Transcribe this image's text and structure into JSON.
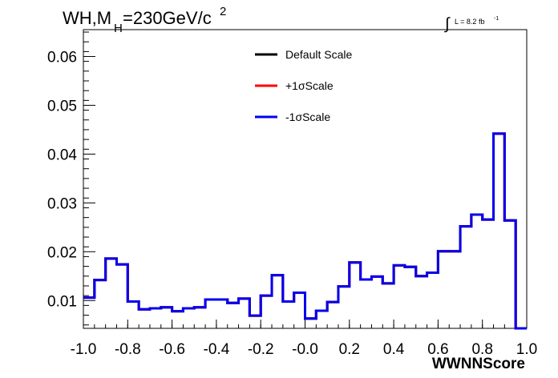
{
  "chart_data": {
    "type": "line",
    "title_main": "WH,M",
    "title_sub": "H",
    "title_rest": "=230GeV/c",
    "title_sup": "2",
    "lumi_integral": "∫",
    "lumi_label": "L = 8.2 fb",
    "lumi_sup": "-1",
    "xlabel": "WWNNScore",
    "ylabel": "",
    "xlim": [
      -1.0,
      1.0
    ],
    "ylim": [
      0.0043,
      0.0655
    ],
    "xticks": [
      "-1.0",
      "-0.8",
      "-0.6",
      "-0.4",
      "-0.2",
      "-0.0",
      "0.2",
      "0.4",
      "0.6",
      "0.8",
      "1.0"
    ],
    "xtick_values": [
      -1.0,
      -0.8,
      -0.6,
      -0.4,
      -0.2,
      0.0,
      0.2,
      0.4,
      0.6,
      0.8,
      1.0
    ],
    "yticks": [
      "0.01",
      "0.02",
      "0.03",
      "0.04",
      "0.05",
      "0.06"
    ],
    "ytick_values": [
      0.01,
      0.02,
      0.03,
      0.04,
      0.05,
      0.06
    ],
    "bin_edges": [
      -1.0,
      -0.95,
      -0.9,
      -0.85,
      -0.8,
      -0.75,
      -0.7,
      -0.65,
      -0.6,
      -0.55,
      -0.5,
      -0.45,
      -0.4,
      -0.35,
      -0.3,
      -0.25,
      -0.2,
      -0.15,
      -0.1,
      -0.05,
      0.0,
      0.05,
      0.1,
      0.15,
      0.2,
      0.25,
      0.3,
      0.35,
      0.4,
      0.45,
      0.5,
      0.55,
      0.6,
      0.65,
      0.7,
      0.75,
      0.8,
      0.85,
      0.9,
      0.95,
      1.0
    ],
    "legend_position": "top-center",
    "series": [
      {
        "name": "Default Scale",
        "color": "#000000",
        "values": [
          0.0106,
          0.0142,
          0.0186,
          0.0174,
          0.0098,
          0.0082,
          0.0084,
          0.0086,
          0.0078,
          0.0084,
          0.0086,
          0.0102,
          0.0102,
          0.0095,
          0.0104,
          0.0069,
          0.011,
          0.0152,
          0.0098,
          0.0116,
          0.0063,
          0.0079,
          0.0097,
          0.0129,
          0.0178,
          0.0143,
          0.0149,
          0.0135,
          0.0172,
          0.0169,
          0.015,
          0.0157,
          0.0201,
          0.0201,
          0.0252,
          0.0276,
          0.0266,
          0.0442,
          0.0264,
          0.0043
        ]
      },
      {
        "name": "+1σScale",
        "color": "#ff0000",
        "values": [
          0.0106,
          0.0142,
          0.0186,
          0.0174,
          0.0098,
          0.0082,
          0.0084,
          0.0086,
          0.0078,
          0.0084,
          0.0086,
          0.0102,
          0.0102,
          0.0095,
          0.0104,
          0.0069,
          0.011,
          0.0152,
          0.0098,
          0.0116,
          0.0063,
          0.0079,
          0.0097,
          0.0129,
          0.0178,
          0.0143,
          0.0149,
          0.0135,
          0.0172,
          0.0169,
          0.015,
          0.0157,
          0.0201,
          0.0201,
          0.0252,
          0.0276,
          0.0266,
          0.0442,
          0.0264,
          0.0043
        ]
      },
      {
        "name": "-1σScale",
        "color": "#0000ee",
        "values": [
          0.0106,
          0.0142,
          0.0186,
          0.0174,
          0.0098,
          0.0082,
          0.0084,
          0.0086,
          0.0078,
          0.0084,
          0.0086,
          0.0102,
          0.0102,
          0.0095,
          0.0104,
          0.0069,
          0.011,
          0.0152,
          0.0098,
          0.0116,
          0.0063,
          0.0079,
          0.0097,
          0.0129,
          0.0178,
          0.0143,
          0.0149,
          0.0135,
          0.0172,
          0.0169,
          0.015,
          0.0157,
          0.0201,
          0.0201,
          0.0252,
          0.0276,
          0.0266,
          0.0442,
          0.0264,
          0.0043
        ]
      }
    ]
  }
}
